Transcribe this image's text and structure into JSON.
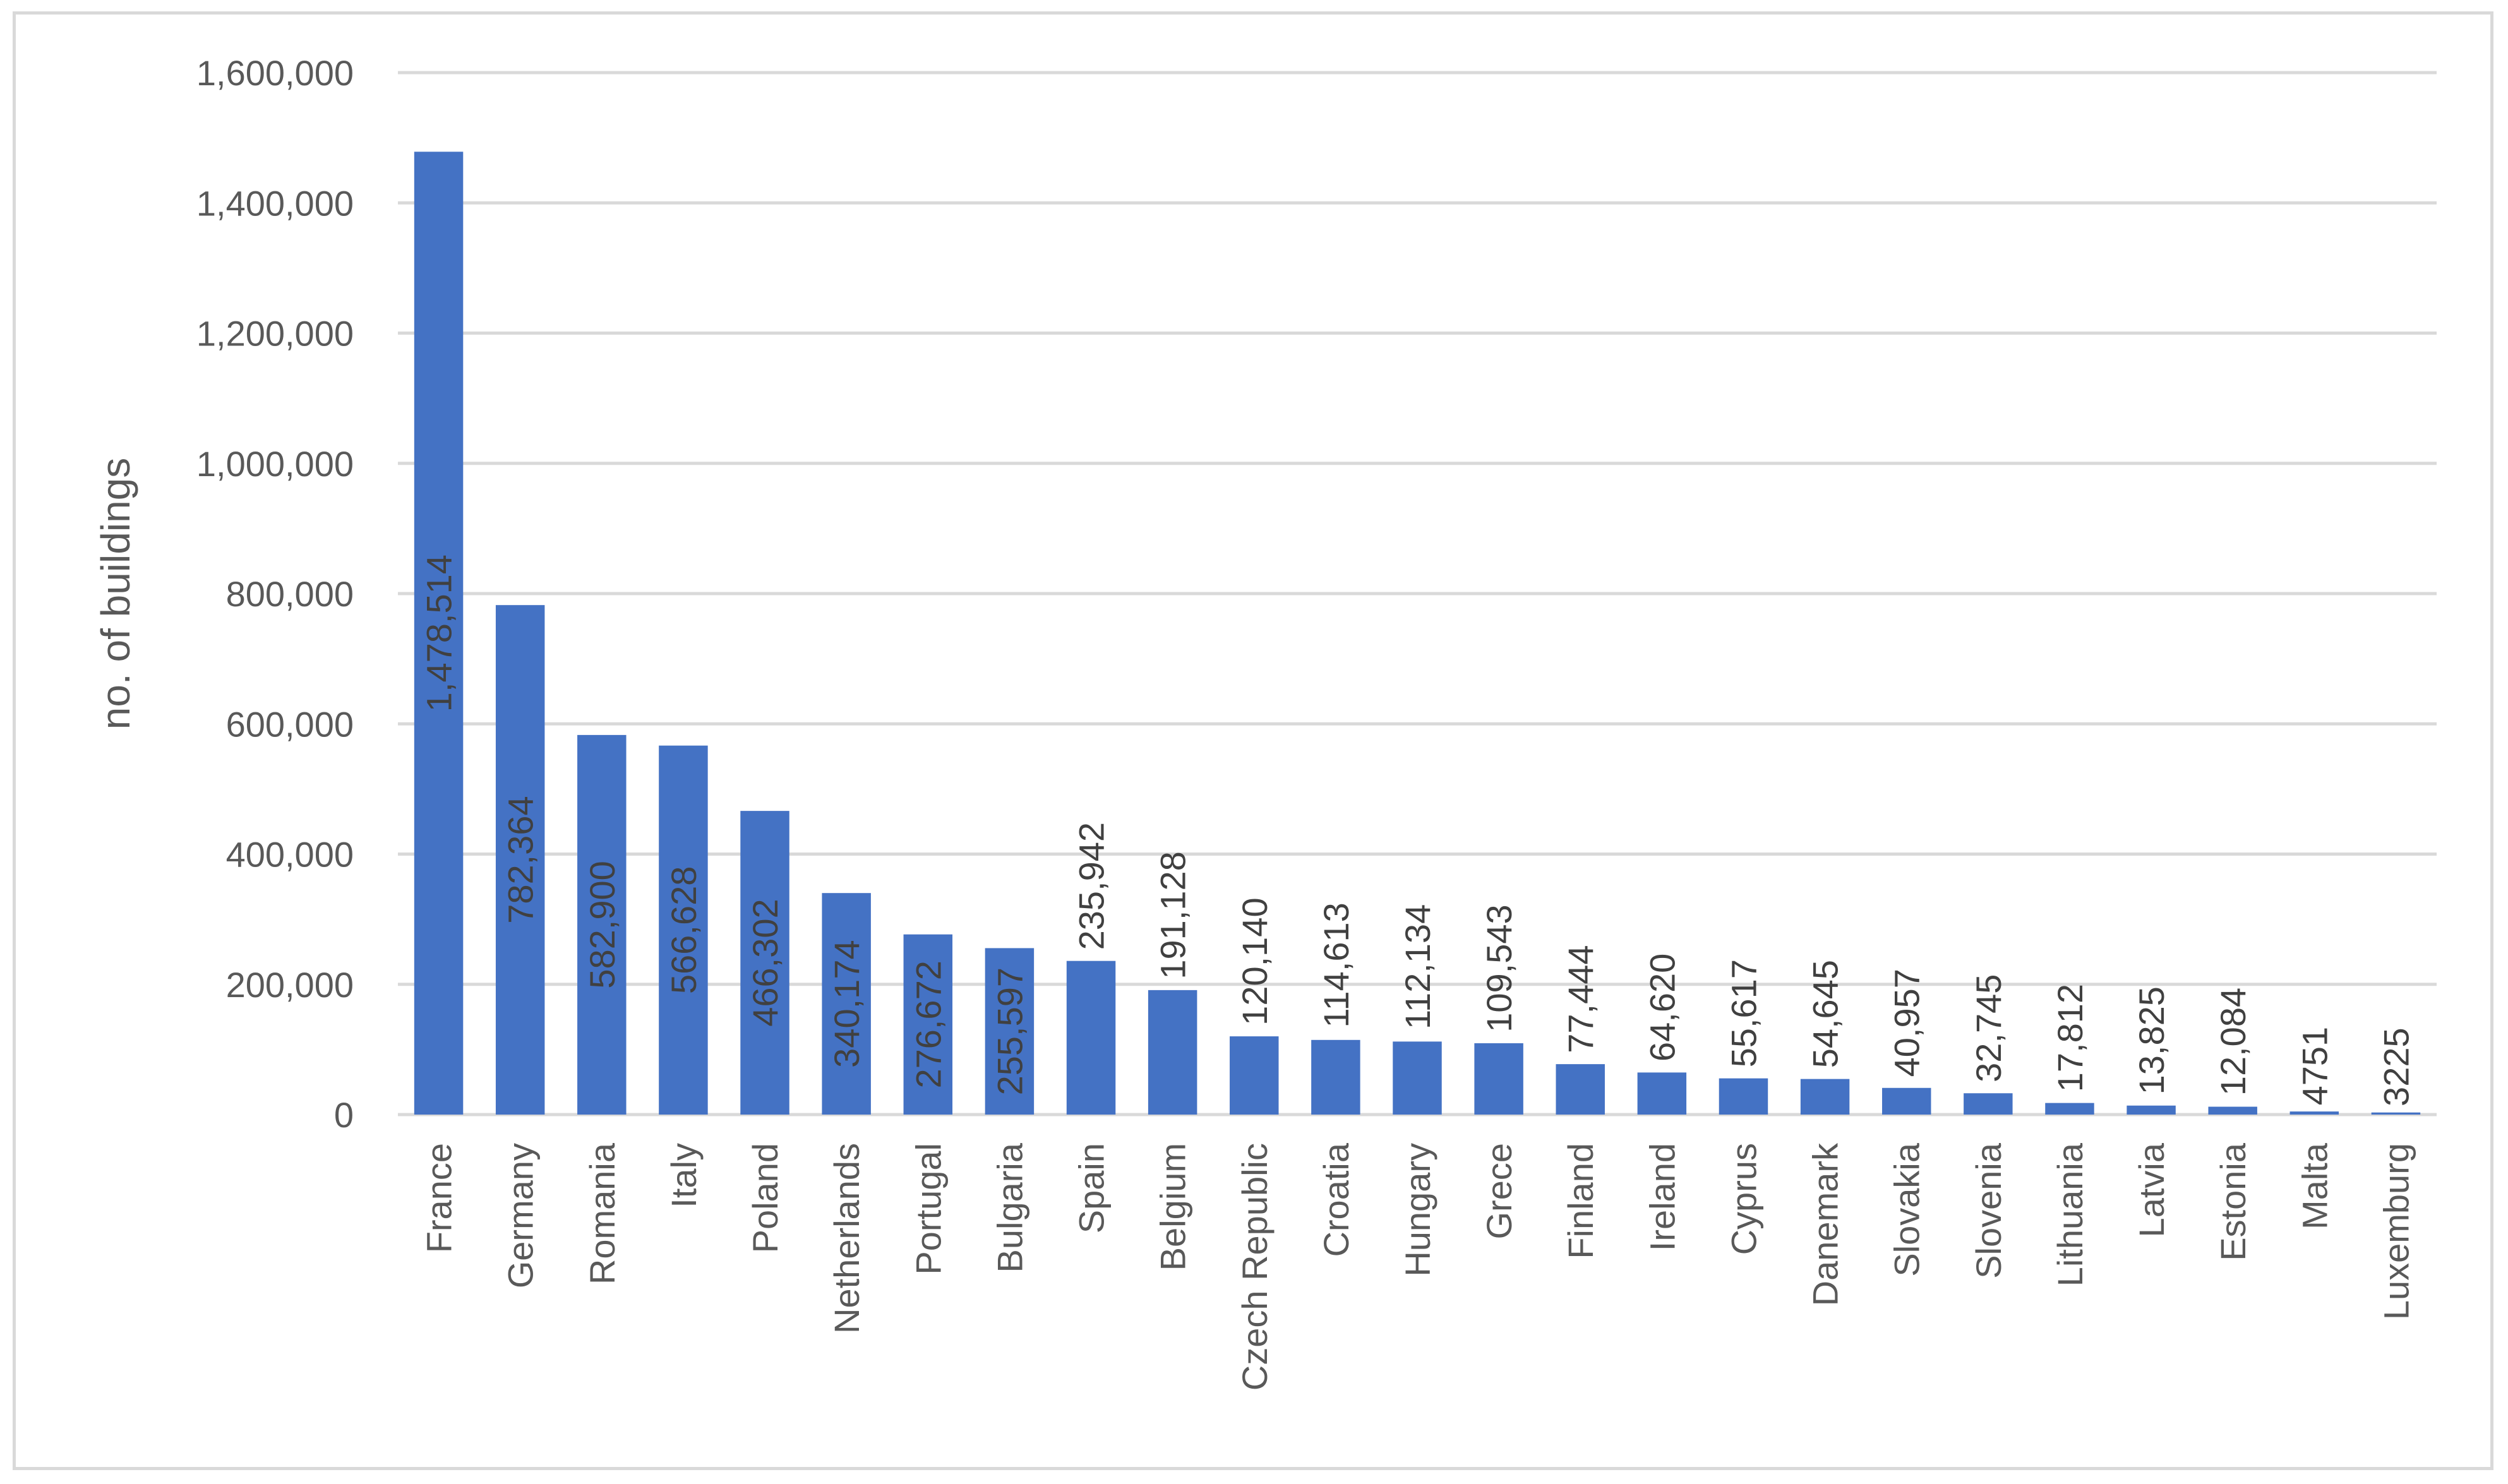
{
  "chart_data": {
    "type": "bar",
    "ylabel": "no. of buildings",
    "ylim": [
      0,
      1600000
    ],
    "ytick_step": 200000,
    "yticks": [
      "0",
      "200,000",
      "400,000",
      "600,000",
      "800,000",
      "1,000,000",
      "1,200,000",
      "1,400,000",
      "1,600,000"
    ],
    "grid": true,
    "legend": "none",
    "bar_color": "#4472c4",
    "categories": [
      "France",
      "Germany",
      "Romania",
      "Italy",
      "Poland",
      "Netherlands",
      "Portugal",
      "Bulgaria",
      "Spain",
      "Belgium",
      "Czech Republic",
      "Croatia",
      "Hungary",
      "Grece",
      "Finland",
      "Ireland",
      "Cyprus",
      "Danemark",
      "Slovakia",
      "Slovenia",
      "Lithuania",
      "Latvia",
      "Estonia",
      "Malta",
      "Luxemburg"
    ],
    "values": [
      1478514,
      782364,
      582900,
      566628,
      466302,
      340174,
      276672,
      255597,
      235942,
      191128,
      120140,
      114613,
      112134,
      109543,
      77444,
      64620,
      55617,
      54645,
      40957,
      32745,
      17812,
      13825,
      12084,
      4751,
      3225
    ],
    "data_labels": [
      "1,478,514",
      "782,364",
      "582,900",
      "566,628",
      "466,302",
      "340,174",
      "276,672",
      "255,597",
      "235,942",
      "191,128",
      "120,140",
      "114,613",
      "112,134",
      "109,543",
      "77,444",
      "64,620",
      "55,617",
      "54,645",
      "40,957",
      "32,745",
      "17,812",
      "13,825",
      "12,084",
      "4751",
      "3225"
    ]
  }
}
